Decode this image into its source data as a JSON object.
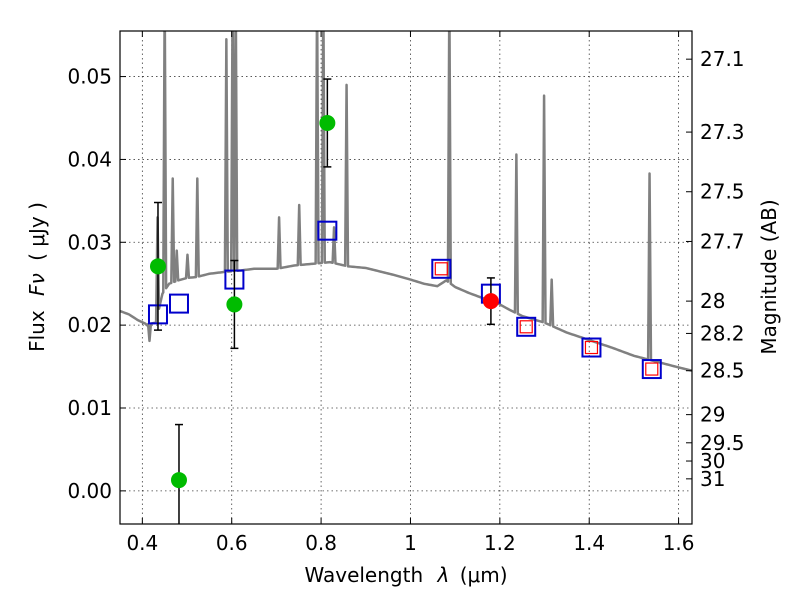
{
  "chart_data": {
    "type": "scatter",
    "title": "",
    "xlabel_text": "Wavelength",
    "xlabel_symbol": "λ",
    "xlabel_unit": "(μm)",
    "ylabel_text": "Flux",
    "ylabel_symbol": "Fν",
    "ylabel_unit": "( μJy )",
    "y2label": "Magnitude (AB)",
    "xlim": [
      0.35,
      1.63
    ],
    "ylim": [
      -0.004,
      0.0555
    ],
    "xticks": [
      0.4,
      0.6,
      0.8,
      1.0,
      1.2,
      1.4,
      1.6
    ],
    "xtick_labels": [
      "0.4",
      "0.6",
      "0.8",
      "1",
      "1.2",
      "1.4",
      "1.6"
    ],
    "yticks": [
      0.0,
      0.01,
      0.02,
      0.03,
      0.04,
      0.05
    ],
    "ytick_labels": [
      "0.00",
      "0.01",
      "0.02",
      "0.03",
      "0.04",
      "0.05"
    ],
    "mag_ticks": [
      {
        "label": "27.1",
        "flux": 0.0521
      },
      {
        "label": "27.3",
        "flux": 0.0433
      },
      {
        "label": "27.5",
        "flux": 0.0361
      },
      {
        "label": "27.7",
        "flux": 0.0301
      },
      {
        "label": "28",
        "flux": 0.0229
      },
      {
        "label": "28.2",
        "flux": 0.019
      },
      {
        "label": "28.5",
        "flux": 0.0145
      },
      {
        "label": "29",
        "flux": 0.0092
      },
      {
        "label": "29.5",
        "flux": 0.0058
      },
      {
        "label": "30",
        "flux": 0.0036
      },
      {
        "label": "31",
        "flux": 0.00145
      }
    ],
    "grid": true,
    "series": [
      {
        "name": "model spectrum",
        "kind": "line",
        "color": "#808080",
        "continuum": [
          [
            0.35,
            0.0217
          ],
          [
            0.37,
            0.0213
          ],
          [
            0.39,
            0.0206
          ],
          [
            0.41,
            0.0201
          ],
          [
            0.43,
            0.0203
          ],
          [
            0.445,
            0.0238
          ],
          [
            0.46,
            0.025
          ],
          [
            0.48,
            0.0254
          ],
          [
            0.5,
            0.0257
          ],
          [
            0.52,
            0.0258
          ],
          [
            0.55,
            0.0262
          ],
          [
            0.58,
            0.0264
          ],
          [
            0.62,
            0.0266
          ],
          [
            0.65,
            0.0268
          ],
          [
            0.7,
            0.0268
          ],
          [
            0.74,
            0.0272
          ],
          [
            0.78,
            0.0274
          ],
          [
            0.82,
            0.0276
          ],
          [
            0.86,
            0.0271
          ],
          [
            0.9,
            0.0269
          ],
          [
            0.93,
            0.0265
          ],
          [
            0.96,
            0.0261
          ],
          [
            1.0,
            0.0255
          ],
          [
            1.03,
            0.025
          ],
          [
            1.06,
            0.0247
          ],
          [
            1.08,
            0.0254
          ],
          [
            1.1,
            0.0246
          ],
          [
            1.13,
            0.0239
          ],
          [
            1.16,
            0.0233
          ],
          [
            1.19,
            0.0228
          ],
          [
            1.22,
            0.0219
          ],
          [
            1.25,
            0.0211
          ],
          [
            1.3,
            0.0203
          ],
          [
            1.35,
            0.0191
          ],
          [
            1.4,
            0.0182
          ],
          [
            1.45,
            0.0173
          ],
          [
            1.5,
            0.0163
          ],
          [
            1.55,
            0.0156
          ],
          [
            1.6,
            0.0149
          ],
          [
            1.63,
            0.0145
          ]
        ],
        "emission_lines": [
          [
            0.434,
            0.033
          ],
          [
            0.45,
            0.06
          ],
          [
            0.468,
            0.0377
          ],
          [
            0.477,
            0.029
          ],
          [
            0.501,
            0.0285
          ],
          [
            0.523,
            0.0377
          ],
          [
            0.588,
            0.0545
          ],
          [
            0.602,
            0.06
          ],
          [
            0.609,
            0.06
          ],
          [
            0.706,
            0.033
          ],
          [
            0.751,
            0.0345
          ],
          [
            0.791,
            0.06
          ],
          [
            0.805,
            0.06
          ],
          [
            0.829,
            0.0318
          ],
          [
            0.857,
            0.049
          ],
          [
            1.087,
            0.06
          ],
          [
            1.237,
            0.0406
          ],
          [
            1.299,
            0.0477
          ],
          [
            1.316,
            0.0255
          ],
          [
            1.535,
            0.0383
          ]
        ],
        "absorption_dips": [
          [
            0.416,
            0.0181
          ],
          [
            0.41,
            0.02
          ]
        ]
      },
      {
        "name": "model photometry",
        "kind": "open-square",
        "color": "#0000cc",
        "x": [
          0.435,
          0.482,
          0.606,
          0.814,
          1.069,
          1.18,
          1.259,
          1.405,
          1.54
        ],
        "y": [
          0.0213,
          0.0226,
          0.0255,
          0.0314,
          0.0268,
          0.0238,
          0.0198,
          0.0173,
          0.0147
        ]
      },
      {
        "name": "inner squares",
        "kind": "open-square-small",
        "color": "#ff0000",
        "x": [
          1.069,
          1.259,
          1.405,
          1.54
        ],
        "y": [
          0.0268,
          0.0198,
          0.0173,
          0.0147
        ]
      },
      {
        "name": "observed detections",
        "kind": "filled-circle",
        "color": "#00bb00",
        "x": [
          0.435,
          0.482,
          0.606,
          0.814
        ],
        "y": [
          0.0271,
          0.0013,
          0.0225,
          0.0444
        ],
        "err": [
          0.0077,
          0.0067,
          0.0053,
          0.0053
        ]
      },
      {
        "name": "observed red point",
        "kind": "filled-circle",
        "color": "#ff0000",
        "x": [
          1.18
        ],
        "y": [
          0.0229
        ],
        "err": [
          0.0028
        ]
      }
    ]
  }
}
